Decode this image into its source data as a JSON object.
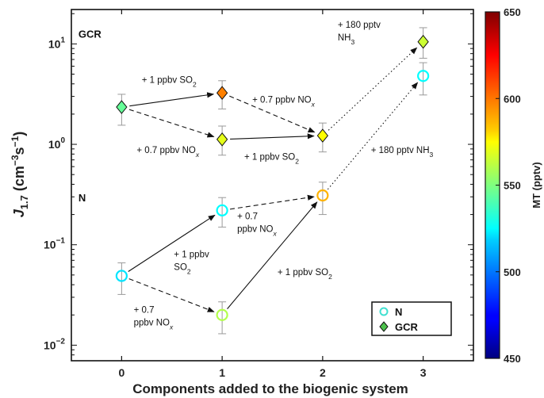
{
  "chart_data": {
    "type": "scatter",
    "xlabel": "Components added to the biogenic system",
    "ylabel": {
      "main": "J",
      "sub": "1.7",
      "unit_open": " (cm",
      "unit_exp1": "−3",
      "unit_mid": "s",
      "unit_exp2": "−1",
      "unit_close": ")"
    },
    "x_ticks": [
      "0",
      "1",
      "2",
      "3"
    ],
    "xlim": [
      -0.5,
      3.5
    ],
    "yscale": "log",
    "ylim": [
      0.007,
      22
    ],
    "y_ticks": [
      {
        "value": 0.01,
        "base": "10",
        "exp": "−2"
      },
      {
        "value": 0.1,
        "base": "10",
        "exp": "−1"
      },
      {
        "value": 1,
        "base": "10",
        "exp": "0"
      },
      {
        "value": 10,
        "base": "10",
        "exp": "1"
      }
    ],
    "grid": false,
    "legend": {
      "position": "bottom-right",
      "entries": [
        {
          "label": "N",
          "marker": "circle",
          "color": "#40e0d0"
        },
        {
          "label": "GCR",
          "marker": "diamond",
          "color": "#4cc24c"
        }
      ]
    },
    "colorbar": {
      "label": "MT (pptv)",
      "min": 450,
      "max": 650,
      "ticks": [
        "450",
        "500",
        "550",
        "600",
        "650"
      ],
      "colormap": "jet"
    },
    "series": [
      {
        "name": "N",
        "marker": "circle",
        "points": [
          {
            "x": 0,
            "y": 0.049,
            "y_low": 0.032,
            "y_high": 0.066,
            "mt": 520
          },
          {
            "x": 1,
            "y": 0.22,
            "y_low": 0.15,
            "y_high": 0.295,
            "mt": 525
          },
          {
            "x": 1,
            "y": 0.02,
            "y_low": 0.013,
            "y_high": 0.027,
            "mt": 560
          },
          {
            "x": 2,
            "y": 0.31,
            "y_low": 0.2,
            "y_high": 0.42,
            "mt": 590
          },
          {
            "x": 3,
            "y": 4.8,
            "y_low": 3.1,
            "y_high": 6.5,
            "mt": 525
          }
        ]
      },
      {
        "name": "GCR",
        "marker": "diamond",
        "points": [
          {
            "x": 0,
            "y": 2.35,
            "y_low": 1.55,
            "y_high": 3.15,
            "mt": 545
          },
          {
            "x": 1,
            "y": 3.25,
            "y_low": 2.25,
            "y_high": 4.3,
            "mt": 600
          },
          {
            "x": 1,
            "y": 1.12,
            "y_low": 0.78,
            "y_high": 1.52,
            "mt": 570
          },
          {
            "x": 2,
            "y": 1.22,
            "y_low": 0.84,
            "y_high": 1.63,
            "mt": 575
          },
          {
            "x": 3,
            "y": 10.5,
            "y_low": 7.2,
            "y_high": 14.5,
            "mt": 565
          }
        ]
      }
    ],
    "connections": [
      {
        "from": [
          0,
          2.35
        ],
        "to": [
          1,
          3.25
        ],
        "style": "solid"
      },
      {
        "from": [
          0,
          2.35
        ],
        "to": [
          1,
          1.12
        ],
        "style": "dashed"
      },
      {
        "from": [
          1,
          3.25
        ],
        "to": [
          2,
          1.22
        ],
        "style": "dashed"
      },
      {
        "from": [
          1,
          1.12
        ],
        "to": [
          2,
          1.22
        ],
        "style": "solid"
      },
      {
        "from": [
          2,
          1.22
        ],
        "to": [
          3,
          10.5
        ],
        "style": "dotted"
      },
      {
        "from": [
          0,
          0.049
        ],
        "to": [
          1,
          0.22
        ],
        "style": "solid"
      },
      {
        "from": [
          0,
          0.049
        ],
        "to": [
          1,
          0.02
        ],
        "style": "dashed"
      },
      {
        "from": [
          1,
          0.22
        ],
        "to": [
          2,
          0.31
        ],
        "style": "dashed"
      },
      {
        "from": [
          1,
          0.02
        ],
        "to": [
          2,
          0.31
        ],
        "style": "solid"
      },
      {
        "from": [
          2,
          0.31
        ],
        "to": [
          3,
          4.8
        ],
        "style": "dotted"
      }
    ],
    "group_labels": [
      {
        "text": "GCR",
        "x": -0.43,
        "y": 11.5
      },
      {
        "text": "N",
        "x": -0.43,
        "y": 0.27
      }
    ],
    "annotations": [
      {
        "x": 0.2,
        "y": 4.1,
        "lines": [
          [
            {
              "t": "+ 1 ppbv SO"
            },
            {
              "t": "2",
              "sub": true
            }
          ]
        ]
      },
      {
        "x": 1.3,
        "y": 2.6,
        "lines": [
          [
            {
              "t": "+ 0.7 ppbv NO"
            },
            {
              "t": "x",
              "sub": true,
              "italic": true
            }
          ]
        ]
      },
      {
        "x": 0.15,
        "y": 0.82,
        "lines": [
          [
            {
              "t": "+ 0.7 ppbv NO"
            },
            {
              "t": "x",
              "sub": true,
              "italic": true
            }
          ]
        ]
      },
      {
        "x": 1.22,
        "y": 0.7,
        "lines": [
          [
            {
              "t": "+ 1 ppbv SO"
            },
            {
              "t": "2",
              "sub": true
            }
          ]
        ]
      },
      {
        "x": 2.15,
        "y": 14.5,
        "lines": [
          [
            {
              "t": "+ 180 pptv"
            }
          ],
          [
            {
              "t": "NH"
            },
            {
              "t": "3",
              "sub": true
            }
          ]
        ]
      },
      {
        "x": 2.48,
        "y": 0.82,
        "lines": [
          [
            {
              "t": "+ 180 pptv NH"
            },
            {
              "t": "3",
              "sub": true
            }
          ]
        ]
      },
      {
        "x": 1.15,
        "y": 0.18,
        "lines": [
          [
            {
              "t": "+ 0.7"
            }
          ],
          [
            {
              "t": "ppbv NO"
            },
            {
              "t": "x",
              "sub": true,
              "italic": true
            }
          ]
        ]
      },
      {
        "x": 0.52,
        "y": 0.075,
        "lines": [
          [
            {
              "t": "+ 1 ppbv"
            }
          ],
          [
            {
              "t": "SO"
            },
            {
              "t": "2",
              "sub": true
            }
          ]
        ]
      },
      {
        "x": 1.55,
        "y": 0.05,
        "lines": [
          [
            {
              "t": "+ 1 ppbv SO"
            },
            {
              "t": "2",
              "sub": true
            }
          ]
        ]
      },
      {
        "x": 0.12,
        "y": 0.021,
        "lines": [
          [
            {
              "t": "+ 0.7"
            }
          ],
          [
            {
              "t": "ppbv NO"
            },
            {
              "t": "x",
              "sub": true,
              "italic": true
            }
          ]
        ]
      }
    ]
  }
}
